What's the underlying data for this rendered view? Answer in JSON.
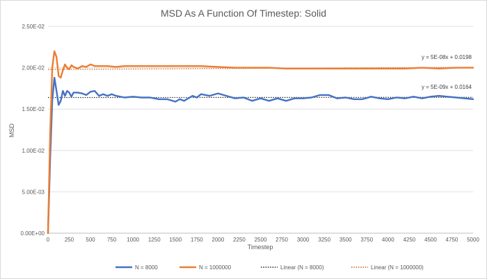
{
  "chart_data": {
    "type": "line",
    "title": "MSD As A Function Of Timestep: Solid",
    "xlabel": "Timestep",
    "ylabel": "MSD",
    "xlim": [
      0,
      5000
    ],
    "ylim": [
      0,
      0.025
    ],
    "x_ticks": [
      0,
      250,
      500,
      750,
      1000,
      1250,
      1500,
      1750,
      2000,
      2250,
      2500,
      2750,
      3000,
      3250,
      3500,
      3750,
      4000,
      4250,
      4500,
      4750,
      5000
    ],
    "y_ticks": [
      0,
      0.005,
      0.01,
      0.015,
      0.02,
      0.025
    ],
    "y_tick_labels": [
      "0.00E+00",
      "5.00E-03",
      "1.00E-02",
      "1.50E-02",
      "2.00E-02",
      "2.50E-02"
    ],
    "grid": "horizontal",
    "legend_position": "bottom",
    "series": [
      {
        "name": "N = 8000",
        "color": "#4472c4",
        "style": "solid",
        "x": [
          0,
          25,
          50,
          75,
          100,
          125,
          150,
          175,
          200,
          225,
          250,
          275,
          300,
          350,
          400,
          450,
          500,
          550,
          600,
          650,
          700,
          750,
          800,
          900,
          1000,
          1100,
          1200,
          1300,
          1400,
          1500,
          1550,
          1600,
          1700,
          1750,
          1800,
          1900,
          2000,
          2100,
          2200,
          2300,
          2400,
          2500,
          2600,
          2700,
          2800,
          2900,
          3000,
          3100,
          3200,
          3300,
          3400,
          3500,
          3600,
          3700,
          3800,
          3900,
          4000,
          4100,
          4200,
          4300,
          4400,
          4500,
          4600,
          4700,
          4800,
          4900,
          5000
        ],
        "values": [
          0.0,
          0.009,
          0.016,
          0.0188,
          0.0172,
          0.0155,
          0.016,
          0.0172,
          0.0166,
          0.0172,
          0.017,
          0.0165,
          0.017,
          0.017,
          0.0169,
          0.0167,
          0.0171,
          0.0172,
          0.0166,
          0.0168,
          0.0166,
          0.0168,
          0.0166,
          0.0164,
          0.0165,
          0.0164,
          0.0164,
          0.0162,
          0.0162,
          0.0159,
          0.0162,
          0.016,
          0.0166,
          0.0164,
          0.0168,
          0.0166,
          0.0169,
          0.0166,
          0.0163,
          0.0164,
          0.016,
          0.0163,
          0.016,
          0.0163,
          0.016,
          0.0163,
          0.0163,
          0.0164,
          0.0167,
          0.0167,
          0.0163,
          0.0164,
          0.0162,
          0.0162,
          0.0165,
          0.0163,
          0.0162,
          0.0164,
          0.0163,
          0.0165,
          0.0163,
          0.0165,
          0.0166,
          0.0165,
          0.0164,
          0.0163,
          0.0162
        ]
      },
      {
        "name": "N = 1000000",
        "color": "#ed7d31",
        "style": "solid",
        "x": [
          0,
          25,
          50,
          75,
          100,
          125,
          150,
          175,
          200,
          225,
          250,
          275,
          300,
          350,
          400,
          450,
          500,
          550,
          600,
          700,
          800,
          900,
          1000,
          1200,
          1400,
          1600,
          1800,
          2000,
          2200,
          2400,
          2600,
          2800,
          3000,
          3200,
          3400,
          3600,
          3800,
          4000,
          4200,
          4400,
          4600,
          4800,
          5000
        ],
        "values": [
          0.0,
          0.012,
          0.02,
          0.022,
          0.0213,
          0.019,
          0.0188,
          0.0197,
          0.0204,
          0.02,
          0.0198,
          0.0203,
          0.0201,
          0.0199,
          0.0202,
          0.0201,
          0.0204,
          0.0202,
          0.0202,
          0.0202,
          0.0201,
          0.0202,
          0.0202,
          0.0202,
          0.0202,
          0.0202,
          0.0202,
          0.0201,
          0.02,
          0.02,
          0.02,
          0.0199,
          0.0199,
          0.0199,
          0.0199,
          0.0199,
          0.0199,
          0.0199,
          0.0199,
          0.02,
          0.0199,
          0.02,
          0.02
        ]
      },
      {
        "name": "Linear (N = 8000)",
        "color": "#262626",
        "style": "dotted",
        "slope": 5e-09,
        "intercept": 0.0164,
        "equation": "y = 5E-09x + 0.0164"
      },
      {
        "name": "Linear (N = 1000000)",
        "color": "#c55a11",
        "style": "dotted",
        "slope": 5e-08,
        "intercept": 0.0198,
        "equation": "y = 5E-08x + 0.0198"
      }
    ]
  }
}
